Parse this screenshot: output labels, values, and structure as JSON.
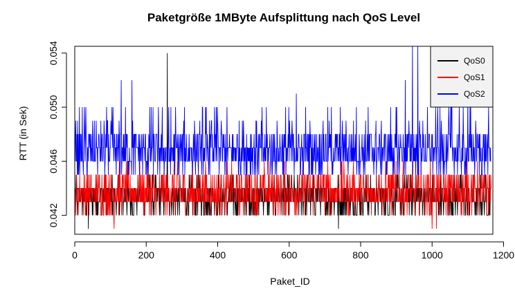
{
  "chart_data": {
    "type": "line",
    "title": "Paketgröße 1MByte Aufsplittung nach QoS Level",
    "xlabel": "Paket_ID",
    "ylabel": "RTT (in Sek)",
    "xlim": [
      0,
      1170
    ],
    "ylim": [
      0.0406,
      0.0545
    ],
    "x_ticks": [
      0,
      200,
      400,
      600,
      800,
      1000,
      1200
    ],
    "y_ticks": [
      0.042,
      0.046,
      0.05,
      0.054
    ],
    "x_tick_labels": [
      "0",
      "200",
      "400",
      "600",
      "800",
      "1000",
      "1200"
    ],
    "y_tick_labels": [
      "0.042",
      "0.046",
      "0.050",
      "0.054"
    ],
    "legend_position": "top-right",
    "grid": false,
    "n_points": 1165,
    "series": [
      {
        "name": "QoS0",
        "color": "#000000",
        "typical_values": [
          0.042,
          0.043,
          0.044
        ],
        "spikes": [
          {
            "x": 38,
            "y": 0.041
          },
          {
            "x": 259,
            "y": 0.054
          },
          {
            "x": 738,
            "y": 0.041
          }
        ]
      },
      {
        "name": "QoS1",
        "color": "#ff0000",
        "typical_values": [
          0.043,
          0.044,
          0.045
        ],
        "spikes": [
          {
            "x": 110,
            "y": 0.041
          },
          {
            "x": 1000,
            "y": 0.041
          },
          {
            "x": 1012,
            "y": 0.041
          }
        ]
      },
      {
        "name": "QoS2",
        "color": "#0000ff",
        "typical_values": [
          0.045,
          0.046,
          0.047,
          0.048
        ],
        "spikes": [
          {
            "x": 130,
            "y": 0.052
          },
          {
            "x": 160,
            "y": 0.052
          },
          {
            "x": 620,
            "y": 0.051
          },
          {
            "x": 925,
            "y": 0.052
          },
          {
            "x": 945,
            "y": 0.0545
          },
          {
            "x": 960,
            "y": 0.0545
          },
          {
            "x": 1055,
            "y": 0.052
          },
          {
            "x": 1100,
            "y": 0.051
          }
        ]
      }
    ]
  }
}
